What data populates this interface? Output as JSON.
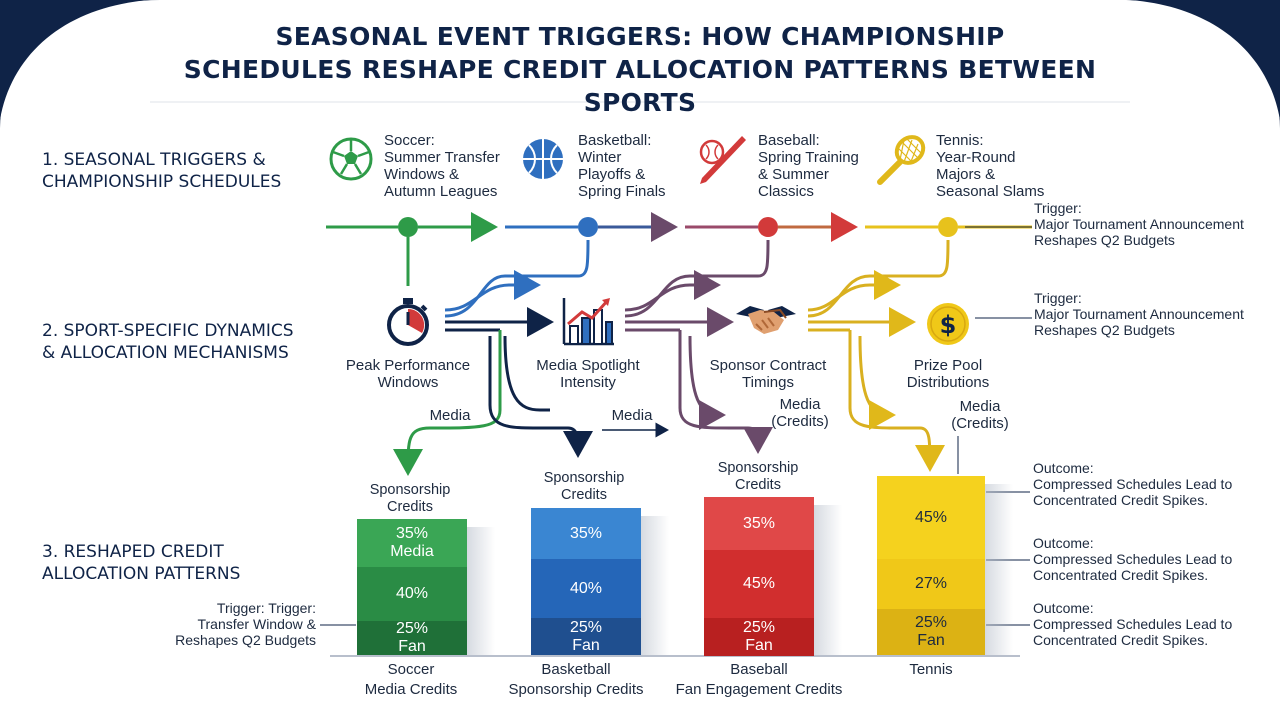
{
  "title_lines": [
    "SEASONAL EVENT TRIGGERS: HOW CHAMPIONSHIP",
    "SCHEDULES RESHAPE CREDIT ALLOCATION PATTERNS BETWEEN SPORTS"
  ],
  "sections": {
    "s1": [
      "1. SEASONAL TRIGGERS &",
      "CHAMPIONSHIP SCHEDULES"
    ],
    "s2": [
      "2. SPORT-SPECIFIC DYNAMICS",
      "& ALLOCATION MECHANISMS"
    ],
    "s3": [
      "3. RESHAPED CREDIT",
      "ALLOCATION PATTERNS"
    ]
  },
  "sports": [
    {
      "name": "Soccer:",
      "lines": [
        "Summer Transfer",
        "Windows &",
        "Autumn Leagues"
      ],
      "icon": "soccer-ball-icon",
      "color": "#2e9b48"
    },
    {
      "name": "Basketball:",
      "lines": [
        "Winter",
        "Playoffs &",
        "Spring Finals"
      ],
      "icon": "basketball-icon",
      "color": "#2f6fbf"
    },
    {
      "name": "Baseball:",
      "lines": [
        "Spring Training",
        "& Summer",
        "Classics"
      ],
      "icon": "baseball-bat-icon",
      "color": "#d23a3a"
    },
    {
      "name": "Tennis:",
      "lines": [
        "Year-Round",
        "Majors &",
        "Seasonal Slams"
      ],
      "icon": "tennis-racket-icon",
      "color": "#e7c21c"
    }
  ],
  "triggers_right": [
    {
      "head": "Trigger:",
      "lines": [
        "Major Tournament Announcement",
        "Reshapes Q2 Budgets"
      ]
    },
    {
      "head": "Trigger:",
      "lines": [
        "Major Tournament Announcement",
        "Reshapes Q2 Budgets"
      ]
    }
  ],
  "mechanisms": [
    {
      "lines": [
        "Peak Performance",
        "Windows"
      ],
      "icon": "stopwatch-icon"
    },
    {
      "lines": [
        "Media Spotlight",
        "Intensity"
      ],
      "icon": "growth-chart-icon"
    },
    {
      "lines": [
        "Sponsor Contract",
        "Timings"
      ],
      "icon": "handshake-icon"
    },
    {
      "lines": [
        "Prize Pool",
        "Distributions"
      ],
      "icon": "dollar-coin-icon"
    }
  ],
  "flow_labels": {
    "media1": "Media",
    "media2": "Media",
    "media3": [
      "Media",
      "(Credits)"
    ],
    "media4": [
      "Media",
      "(Credits)"
    ]
  },
  "bar_labels": {
    "soccer": [
      "Sponsorship",
      "Credits"
    ],
    "basketball": [
      "Sponsorship",
      "Credits"
    ],
    "baseball": [
      "Sponsorship",
      "Credits"
    ]
  },
  "left_trigger": [
    "Trigger: Trigger:",
    "Transfer Window &",
    "Reshapes Q2 Budgets"
  ],
  "outcomes": [
    {
      "head": "Outcome:",
      "lines": [
        "Compressed Schedules Lead to",
        "Concentrated Credit Spikes."
      ]
    },
    {
      "head": "Outcome:",
      "lines": [
        "Compressed Schedules Lead to",
        "Concentrated Credit Spikes."
      ]
    },
    {
      "head": "Outcome:",
      "lines": [
        "Compressed Schedules Lead to",
        "Concentrated Credit Spikes."
      ]
    }
  ],
  "chart_data": {
    "type": "bar",
    "stacked": true,
    "categories": [
      [
        "Soccer",
        "Media Credits"
      ],
      [
        "Basketball",
        "Sponsorship Credits"
      ],
      [
        "Baseball",
        "Fan Engagement Credits"
      ],
      [
        "Tennis"
      ]
    ],
    "bars": [
      {
        "segments": [
          {
            "value": 35,
            "text": "35%",
            "sub": "Media",
            "color": "#3aa655"
          },
          {
            "value": 40,
            "text": "40%",
            "sub": "",
            "color": "#2a8c45"
          },
          {
            "value": 25,
            "text": "25%",
            "sub": "Fan",
            "color": "#1f7038"
          }
        ]
      },
      {
        "segments": [
          {
            "value": 35,
            "text": "35%",
            "sub": "",
            "color": "#3a86d2"
          },
          {
            "value": 40,
            "text": "40%",
            "sub": "",
            "color": "#2566b8"
          },
          {
            "value": 25,
            "text": "25%",
            "sub": "Fan",
            "color": "#1f4f8f"
          }
        ]
      },
      {
        "segments": [
          {
            "value": 35,
            "text": "35%",
            "sub": "",
            "color": "#e04848"
          },
          {
            "value": 45,
            "text": "45%",
            "sub": "",
            "color": "#d12e2e"
          },
          {
            "value": 25,
            "text": "25%",
            "sub": "Fan",
            "color": "#b82020"
          }
        ]
      },
      {
        "segments": [
          {
            "value": 45,
            "text": "45%",
            "sub": "",
            "color": "#f5d21e"
          },
          {
            "value": 27,
            "text": "27%",
            "sub": "",
            "color": "#f0c818"
          },
          {
            "value": 25,
            "text": "25%",
            "sub": "Fan",
            "color": "#dcb214"
          }
        ]
      }
    ]
  }
}
